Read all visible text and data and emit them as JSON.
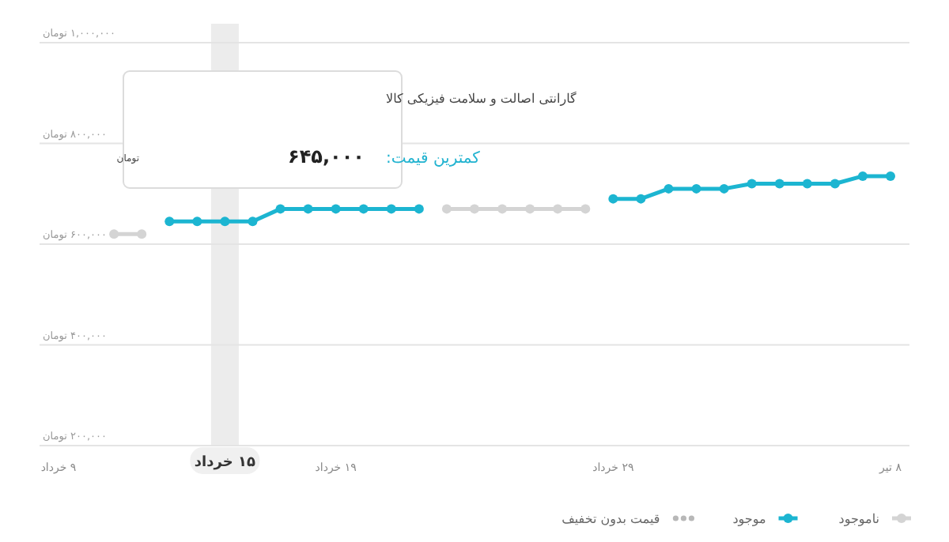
{
  "chart_data": {
    "type": "line",
    "categories": [
      "۹ خرداد",
      null,
      null,
      null,
      null,
      null,
      "۱۵ خرداد",
      null,
      null,
      null,
      "۱۹ خرداد",
      null,
      null,
      null,
      null,
      null,
      null,
      null,
      null,
      null,
      "۲۹ خرداد",
      null,
      null,
      null,
      null,
      null,
      null,
      null,
      null,
      null,
      "۸ تیر"
    ],
    "series": [
      {
        "name": "ناموجود",
        "color": "#d4d4d4",
        "line_style": "solid",
        "values": [
          null,
          null,
          620000,
          620000,
          null,
          null,
          null,
          null,
          null,
          null,
          null,
          null,
          null,
          null,
          670000,
          670000,
          670000,
          670000,
          670000,
          670000,
          null,
          null,
          null,
          null,
          null,
          null,
          null,
          null,
          null,
          null,
          null
        ]
      },
      {
        "name": "موجود",
        "color": "#1cb5d1",
        "line_style": "solid",
        "values": [
          null,
          null,
          null,
          null,
          645000,
          645000,
          645000,
          645000,
          670000,
          670000,
          670000,
          670000,
          670000,
          670000,
          null,
          null,
          null,
          null,
          null,
          null,
          690000,
          690000,
          710000,
          710000,
          710000,
          720000,
          720000,
          720000,
          720000,
          735000,
          735000
        ]
      },
      {
        "name": "قیمت بدون تخفیف",
        "color": "#b8b8b8",
        "line_style": "dotted",
        "values": [
          null,
          null,
          null,
          null,
          null,
          null,
          null,
          null,
          null,
          null,
          null,
          null,
          null,
          null,
          null,
          null,
          null,
          null,
          null,
          null,
          null,
          null,
          null,
          null,
          null,
          null,
          null,
          null,
          null,
          null,
          null
        ]
      }
    ],
    "ylim": [
      200000,
      1000000
    ],
    "yticks": [
      {
        "value": 200000,
        "label": "۲۰۰,۰۰۰ تومان"
      },
      {
        "value": 400000,
        "label": "۴۰۰,۰۰۰ تومان"
      },
      {
        "value": 600000,
        "label": "۶۰۰,۰۰۰ تومان"
      },
      {
        "value": 800000,
        "label": "۸۰۰,۰۰۰ تومان"
      },
      {
        "value": 1000000,
        "label": "۱,۰۰۰,۰۰۰ تومان"
      }
    ],
    "grid": "y",
    "marker": "circle",
    "legend": "bottom",
    "bands": [
      {
        "axis": "x",
        "from": "۱۵ خرداد",
        "to": "۱۵ خرداد",
        "color": "#ececec"
      }
    ],
    "annotations": [
      "گارانتی اصالت و سلامت فیزیکی کالا",
      "کمترین قیمت:",
      "۶۴۵,۰۰۰",
      "تومان"
    ]
  }
}
